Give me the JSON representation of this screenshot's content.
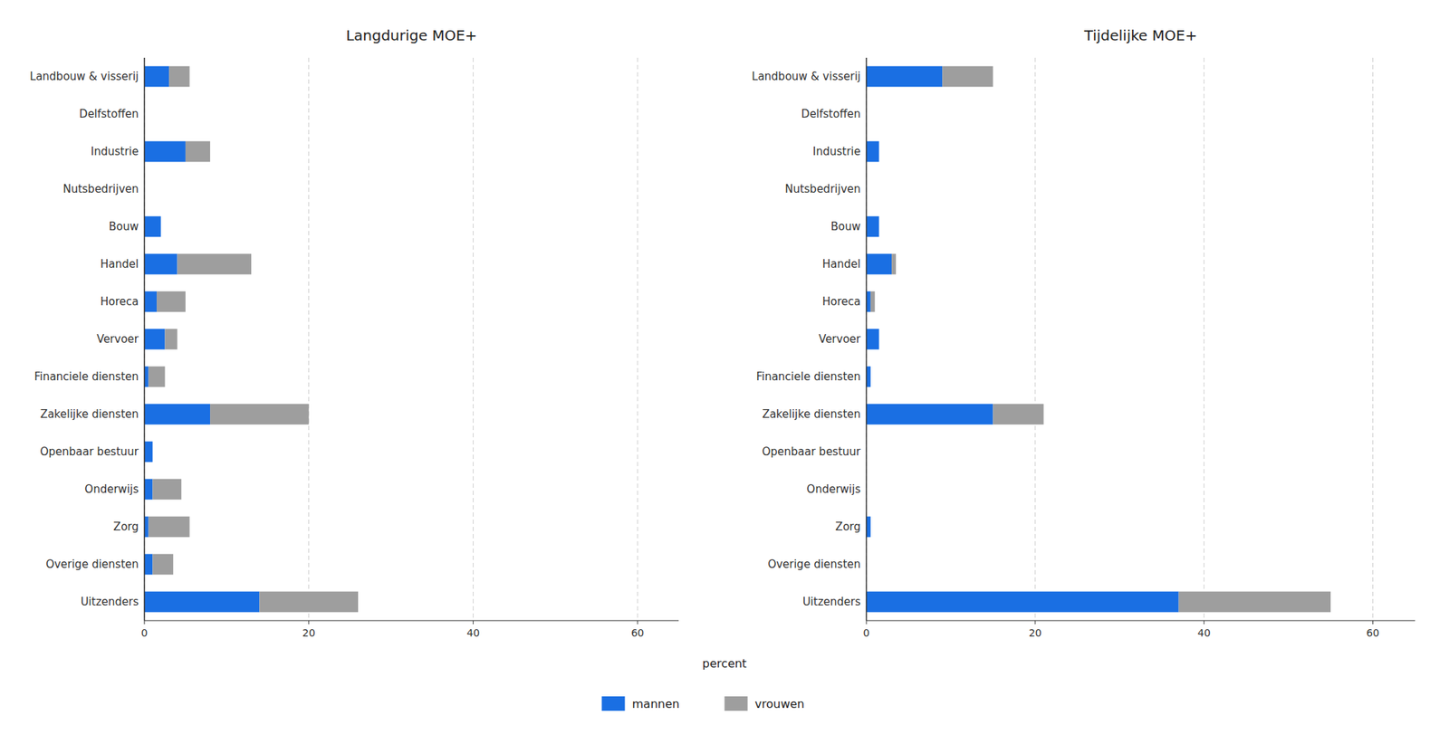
{
  "chart_data": [
    {
      "type": "bar",
      "orientation": "horizontal",
      "stacked": true,
      "title": "Langdurige MOE+",
      "xlabel": "percent",
      "legend": "bottom",
      "grid": true,
      "categories": [
        "Landbouw & visserij",
        "Delfstoffen",
        "Industrie",
        "Nutsbedrijven",
        "Bouw",
        "Handel",
        "Horeca",
        "Vervoer",
        "Financiele diensten",
        "Zakelijke diensten",
        "Openbaar bestuur",
        "Onderwijs",
        "Zorg",
        "Overige diensten",
        "Uitzenders"
      ],
      "series": [
        {
          "name": "mannen",
          "color": "#1a6fe3",
          "values": [
            3.0,
            0.0,
            5.0,
            0.0,
            2.0,
            4.0,
            1.5,
            2.5,
            0.5,
            8.0,
            1.0,
            1.0,
            0.5,
            1.0,
            14.0
          ]
        },
        {
          "name": "vrouwen",
          "color": "#9e9e9e",
          "values": [
            2.5,
            0.0,
            3.0,
            0.0,
            0.0,
            9.0,
            3.5,
            1.5,
            2.0,
            12.0,
            0.0,
            3.5,
            5.0,
            2.5,
            12.0
          ]
        }
      ],
      "xlim": [
        0,
        65
      ],
      "xticks": [
        0,
        20,
        40,
        60
      ]
    },
    {
      "type": "bar",
      "orientation": "horizontal",
      "stacked": true,
      "title": "Tijdelijke MOE+",
      "grid": true,
      "categories": [
        "Landbouw & visserij",
        "Delfstoffen",
        "Industrie",
        "Nutsbedrijven",
        "Bouw",
        "Handel",
        "Horeca",
        "Vervoer",
        "Financiele diensten",
        "Zakelijke diensten",
        "Openbaar bestuur",
        "Onderwijs",
        "Zorg",
        "Overige diensten",
        "Uitzenders"
      ],
      "series": [
        {
          "name": "mannen",
          "color": "#1a6fe3",
          "values": [
            9.0,
            0.0,
            1.5,
            0.0,
            1.5,
            3.0,
            0.5,
            1.5,
            0.5,
            15.0,
            0.0,
            0.0,
            0.5,
            0.0,
            37.0
          ]
        },
        {
          "name": "vrouwen",
          "color": "#9e9e9e",
          "values": [
            6.0,
            0.0,
            0.0,
            0.0,
            0.0,
            0.5,
            0.5,
            0.0,
            0.0,
            6.0,
            0.0,
            0.0,
            0.0,
            0.0,
            18.0
          ]
        }
      ],
      "xlim": [
        0,
        65
      ],
      "xticks": [
        0,
        20,
        40,
        60
      ]
    }
  ]
}
